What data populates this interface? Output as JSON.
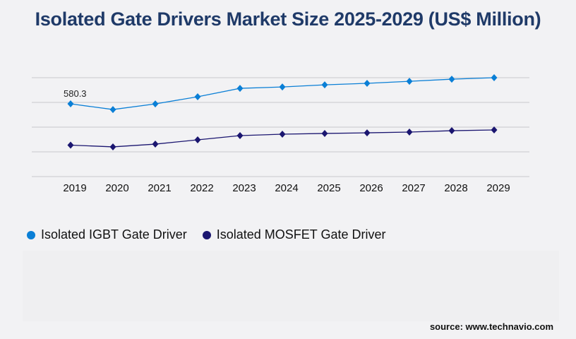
{
  "title": "Isolated Gate Drivers Market Size 2025-2029 (US$ Million)",
  "source": "source: www.technavio.com",
  "chart_data": {
    "type": "line",
    "title": "Isolated Gate Drivers Market Size 2025-2029 (US$ Million)",
    "xlabel": "",
    "ylabel": "",
    "categories": [
      "2019",
      "2020",
      "2021",
      "2022",
      "2023",
      "2024",
      "2025",
      "2026",
      "2027",
      "2028",
      "2029"
    ],
    "ylim": [
      0,
      789
    ],
    "grid": true,
    "legend_position": "bottom-left",
    "series": [
      {
        "name": "Isolated IGBT Gate Driver",
        "color": "#0a7fd6",
        "values": [
          580.3,
          535,
          580,
          637,
          704,
          715,
          732,
          744,
          760,
          777,
          789
        ]
      },
      {
        "name": "Isolated MOSFET Gate Driver",
        "color": "#1b1670",
        "values": [
          251,
          237,
          259,
          293,
          327,
          338,
          344,
          349,
          355,
          366,
          372
        ]
      }
    ],
    "annotations": [
      {
        "series": 0,
        "index": 0,
        "text": "580.3"
      }
    ]
  }
}
